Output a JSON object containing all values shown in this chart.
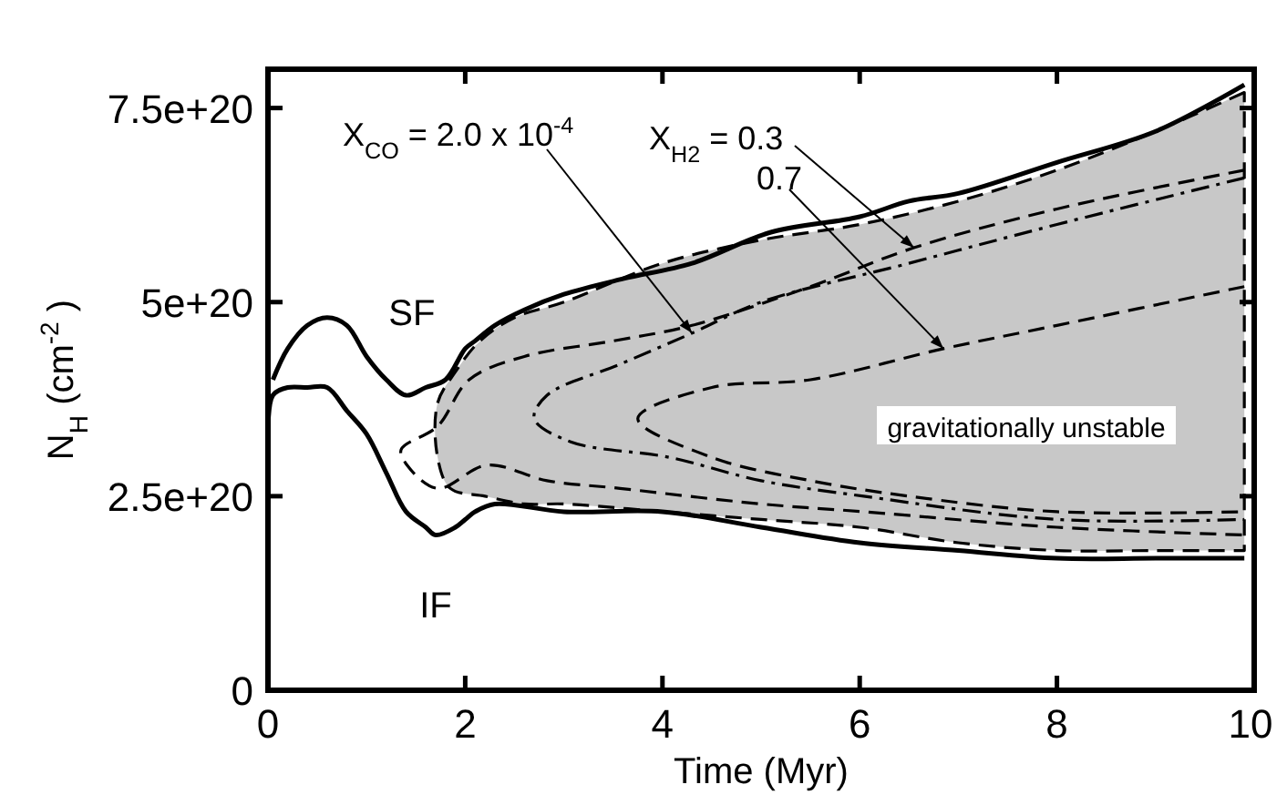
{
  "chart_data": {
    "type": "line",
    "xlabel": "Time (Myr)",
    "ylabel": "N$_{H}$ (cm$^{-2}$ )",
    "xlim": [
      0,
      10
    ],
    "ylim": [
      0,
      8e+20
    ],
    "xticks": [
      0,
      2,
      4,
      6,
      8,
      10
    ],
    "yticks": [
      0,
      {
        "value": 2.5e+20,
        "label": "2.5e+20"
      },
      {
        "value": 5e+20,
        "label": "5e+20"
      },
      {
        "value": 7.5e+20,
        "label": "7.5e+20"
      }
    ],
    "grid": false,
    "series": [
      {
        "type": "area",
        "color": "#c8c8c8",
        "line_style": "dashed",
        "x": [
          9.9,
          9.0,
          8.0,
          7.0,
          6.0,
          5.0,
          4.0,
          3.0,
          2.5,
          2.15,
          1.9,
          1.72,
          1.72,
          1.85,
          2.2,
          2.6,
          3.0,
          4.0,
          5.0,
          6.0,
          7.0,
          8.0,
          9.0,
          9.9
        ],
        "values": [
          7.7e+20,
          7.2e+20,
          6.7e+20,
          6.3e+20,
          6e+20,
          5.8e+20,
          5.5e+20,
          5e+20,
          4.8e+20,
          4.5e+20,
          4.1e+20,
          3.7e+20,
          3e+20,
          2.6e+20,
          2.5e+20,
          2.4e+20,
          2.4e+20,
          2.3e+20,
          2.2e+20,
          2.1e+20,
          1.9e+20,
          1.8e+20,
          1.8e+20,
          1.8e+20
        ]
      },
      {
        "name": "SF",
        "color": "#000000",
        "line_style": "solid",
        "x": [
          0.05,
          0.2,
          0.4,
          0.6,
          0.8,
          1.0,
          1.2,
          1.4,
          1.6,
          1.8,
          2.0,
          2.1,
          2.3,
          2.6,
          3.0,
          3.6,
          4.3,
          5.1,
          6.0,
          6.5,
          7.0,
          8.0,
          9.0,
          9.9
        ],
        "values": [
          4e+20,
          4.4e+20,
          4.7e+20,
          4.8e+20,
          4.7e+20,
          4.3e+20,
          4e+20,
          3.8e+20,
          3.9e+20,
          4e+20,
          4.4e+20,
          4.5e+20,
          4.7e+20,
          4.9e+20,
          5.1e+20,
          5.3e+20,
          5.5e+20,
          5.9e+20,
          6.1e+20,
          6.3e+20,
          6.4e+20,
          6.8e+20,
          7.2e+20,
          7.8e+20
        ]
      },
      {
        "name": "IF",
        "color": "#000000",
        "line_style": "solid",
        "x": [
          0,
          0.05,
          0.2,
          0.4,
          0.6,
          0.8,
          1.0,
          1.2,
          1.4,
          1.6,
          1.7,
          1.9,
          2.0,
          2.1,
          2.3,
          3.0,
          4.0,
          5.0,
          6.0,
          7.0,
          8.0,
          9.0,
          9.9
        ],
        "values": [
          3.3e+20,
          3.8e+20,
          3.9e+20,
          3.9e+20,
          3.9e+20,
          3.6e+20,
          3.3e+20,
          2.8e+20,
          2.3e+20,
          2.1e+20,
          2e+20,
          2.1e+20,
          2.2e+20,
          2.3e+20,
          2.4e+20,
          2.3e+20,
          2.3e+20,
          2.1e+20,
          1.9e+20,
          1.8e+20,
          1.7e+20,
          1.7e+20,
          1.7e+20
        ]
      },
      {
        "color": "#000000",
        "line_style": "dashed",
        "x": [
          9.9,
          8.0,
          6.55,
          5.5,
          4.3,
          3.5,
          2.6,
          2.04,
          1.72,
          1.35,
          1.41,
          1.72,
          2.22,
          2.83,
          3.57,
          5.0,
          6.04,
          8.0,
          9.9
        ],
        "values": [
          6.7e+20,
          6.2e+20,
          5.7e+20,
          5.2e+20,
          4.7e+20,
          4.5e+20,
          4.3e+20,
          4e+20,
          3.4e+20,
          3.1e+20,
          2.9e+20,
          2.6e+20,
          2.9e+20,
          2.7e+20,
          2.6e+20,
          2.4e+20,
          2.3e+20,
          2.1e+20,
          2e+20
        ]
      },
      {
        "color": "#000000",
        "line_style": "dashdot",
        "x": [
          9.9,
          8.0,
          6.5,
          5.0,
          4.3,
          3.57,
          2.83,
          2.7,
          3.07,
          4.07,
          5.0,
          6.04,
          8.0,
          9.9
        ],
        "values": [
          6.6e+20,
          6e+20,
          5.5e+20,
          5e+20,
          4.6e+20,
          4.2e+20,
          3.8e+20,
          3.5e+20,
          3.2e+20,
          3e+20,
          2.7e+20,
          2.5e+20,
          2.2e+20,
          2.2e+20
        ]
      },
      {
        "color": "#000000",
        "line_style": "dashed",
        "x": [
          9.9,
          8.0,
          6.85,
          5.5,
          4.5,
          3.75,
          4.5,
          5.5,
          6.5,
          8.0,
          9.9
        ],
        "values": [
          5.2e+20,
          4.7e+20,
          4.4e+20,
          4e+20,
          3.9e+20,
          3.5e+20,
          3e+20,
          2.7e+20,
          2.5e+20,
          2.3e+20,
          2.3e+20
        ]
      }
    ],
    "annotations": [
      {
        "text": "X$_{CO}$ = 2.0 x 10$^{-4}$",
        "x": 4.3,
        "y": 4.6e+20
      },
      {
        "text": "X$_{H2}$ = 0.3",
        "x": 6.55,
        "y": 5.7e+20
      },
      {
        "text": "0.7",
        "x": 6.85,
        "y": 4.4e+20
      },
      "gravitationally unstable"
    ]
  }
}
